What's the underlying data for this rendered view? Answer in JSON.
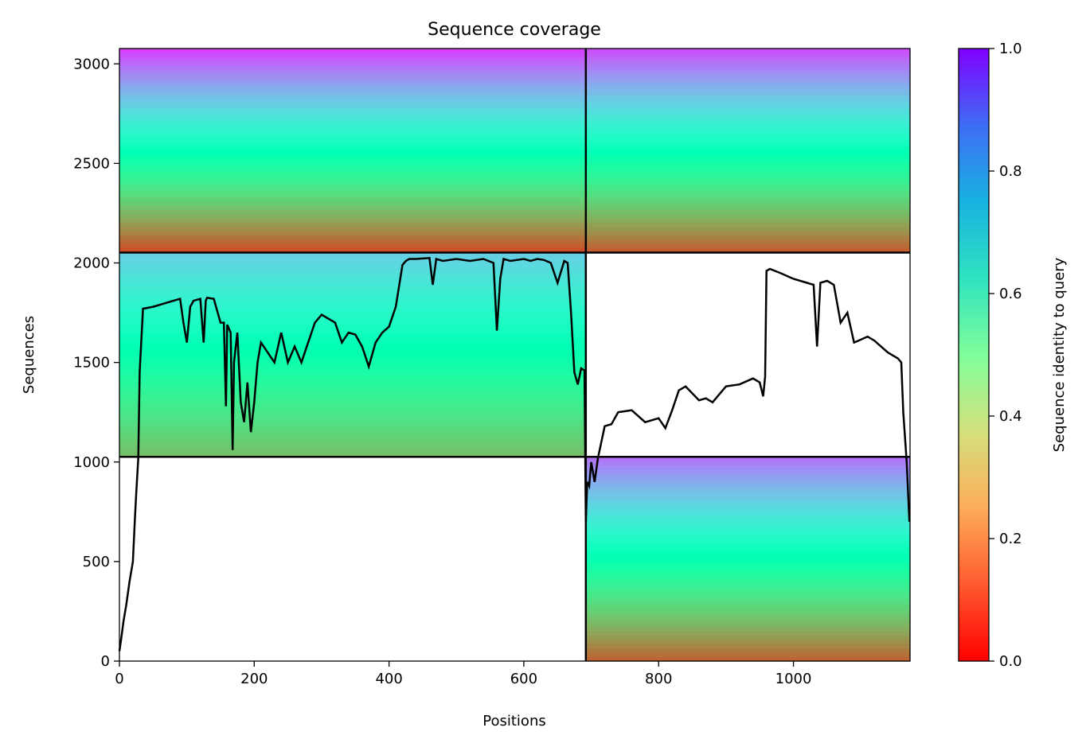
{
  "chart_data": {
    "type": "heatmap",
    "title": "Sequence coverage",
    "xlabel": "Positions",
    "ylabel": "Sequences",
    "xlim": [
      0,
      1173
    ],
    "ylim": [
      0,
      3077
    ],
    "x_ticks": [
      "0",
      "200",
      "400",
      "600",
      "800",
      "1000"
    ],
    "x_tick_values": [
      0,
      200,
      400,
      600,
      800,
      1000
    ],
    "y_ticks": [
      "0",
      "500",
      "1000",
      "1500",
      "2000",
      "2500",
      "3000"
    ],
    "y_tick_values": [
      0,
      500,
      1000,
      1500,
      2000,
      2500,
      3000
    ],
    "colorbar": {
      "label": "Sequence identity to query",
      "colormap": "rainbow_r",
      "range": [
        0,
        1
      ],
      "ticks": [
        "0.0",
        "0.2",
        "0.4",
        "0.6",
        "0.8",
        "1.0"
      ],
      "tick_values": [
        0,
        0.2,
        0.4,
        0.6,
        0.8,
        1.0
      ]
    },
    "block_boundaries": {
      "x": [
        692
      ],
      "y": [
        1026,
        2052
      ]
    },
    "coverage_blocks": [
      {
        "x": [
          0,
          692
        ],
        "y": [
          1026,
          2052
        ],
        "identity_top": 0.7,
        "identity_bottom": 0.27
      },
      {
        "x": [
          0,
          692
        ],
        "y": [
          2052,
          3077
        ],
        "identity_top": 0.92,
        "identity_bottom": 0.1
      },
      {
        "x": [
          692,
          1173
        ],
        "y": [
          2052,
          3077
        ],
        "identity_top": 0.9,
        "identity_bottom": 0.12
      },
      {
        "x": [
          692,
          1173
        ],
        "y": [
          0,
          1026
        ],
        "identity_top": 0.85,
        "identity_bottom": 0.13
      }
    ],
    "coverage_line": {
      "color": "#000000",
      "x": [
        0,
        3,
        6,
        10,
        15,
        20,
        23,
        25,
        28,
        30,
        35,
        50,
        70,
        80,
        90,
        95,
        100,
        105,
        110,
        120,
        125,
        128,
        130,
        140,
        150,
        155,
        158,
        160,
        165,
        168,
        170,
        175,
        180,
        185,
        190,
        195,
        200,
        205,
        210,
        220,
        230,
        240,
        250,
        260,
        270,
        280,
        290,
        300,
        310,
        320,
        330,
        340,
        350,
        360,
        370,
        380,
        390,
        400,
        410,
        420,
        425,
        430,
        440,
        460,
        465,
        470,
        480,
        500,
        520,
        540,
        555,
        560,
        565,
        570,
        580,
        600,
        610,
        620,
        630,
        640,
        650,
        660,
        665,
        670,
        675,
        680,
        685,
        690,
        692,
        694,
        697,
        700,
        705,
        710,
        720,
        730,
        740,
        760,
        780,
        800,
        810,
        820,
        830,
        840,
        860,
        870,
        880,
        890,
        900,
        920,
        940,
        950,
        955,
        958,
        960,
        965,
        980,
        1000,
        1020,
        1030,
        1035,
        1040,
        1050,
        1060,
        1070,
        1080,
        1090,
        1110,
        1120,
        1140,
        1155,
        1160,
        1163,
        1168,
        1172
      ],
      "y": [
        50,
        120,
        200,
        280,
        400,
        500,
        720,
        850,
        1020,
        1450,
        1770,
        1780,
        1800,
        1810,
        1820,
        1700,
        1600,
        1780,
        1810,
        1820,
        1600,
        1810,
        1825,
        1820,
        1700,
        1700,
        1280,
        1690,
        1650,
        1060,
        1500,
        1650,
        1300,
        1200,
        1400,
        1150,
        1300,
        1500,
        1600,
        1550,
        1500,
        1650,
        1500,
        1580,
        1500,
        1600,
        1700,
        1740,
        1720,
        1700,
        1600,
        1650,
        1640,
        1580,
        1480,
        1600,
        1650,
        1680,
        1780,
        1990,
        2010,
        2020,
        2020,
        2025,
        1890,
        2020,
        2010,
        2020,
        2010,
        2020,
        2000,
        1660,
        1920,
        2020,
        2010,
        2020,
        2010,
        2020,
        2015,
        2000,
        1900,
        2010,
        2000,
        1750,
        1450,
        1390,
        1470,
        1460,
        700,
        900,
        880,
        1000,
        900,
        1020,
        1180,
        1190,
        1250,
        1260,
        1200,
        1220,
        1170,
        1260,
        1360,
        1380,
        1310,
        1320,
        1300,
        1340,
        1380,
        1390,
        1420,
        1400,
        1330,
        1430,
        1960,
        1970,
        1950,
        1920,
        1900,
        1890,
        1580,
        1900,
        1910,
        1890,
        1700,
        1750,
        1600,
        1630,
        1610,
        1550,
        1520,
        1500,
        1250,
        1000,
        700
      ]
    }
  }
}
